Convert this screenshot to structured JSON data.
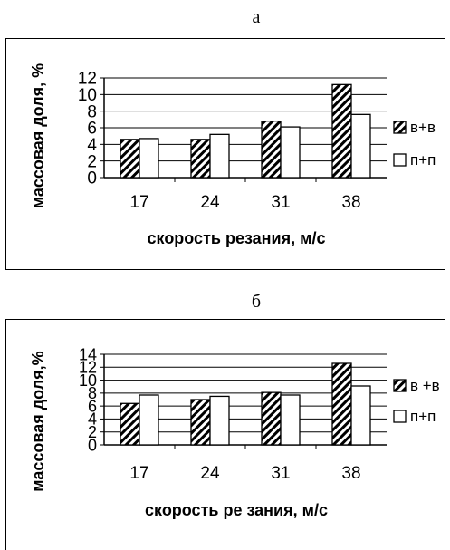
{
  "panels": [
    {
      "letter": "а"
    },
    {
      "letter": "б"
    }
  ],
  "chart_data": [
    {
      "type": "bar",
      "categories": [
        "17",
        "24",
        "31",
        "38"
      ],
      "series": [
        {
          "name": "в+в",
          "values": [
            4.6,
            4.6,
            6.8,
            11.2
          ],
          "pattern": "hatched"
        },
        {
          "name": "п+п",
          "values": [
            4.7,
            5.2,
            6.1,
            7.6
          ],
          "pattern": "white"
        }
      ],
      "xlabel": "скорость резания, м/с",
      "ylabel": "массовая доля, %",
      "ylim": [
        0,
        12
      ],
      "yticks": [
        "0",
        "2",
        "4",
        "6",
        "8",
        "10",
        "12"
      ],
      "grid": true,
      "legend": "right"
    },
    {
      "type": "bar",
      "categories": [
        "17",
        "24",
        "31",
        "38"
      ],
      "series": [
        {
          "name": "в +в",
          "values": [
            6.4,
            7.0,
            8.1,
            12.6
          ],
          "pattern": "hatched"
        },
        {
          "name": "п+п",
          "values": [
            7.7,
            7.5,
            7.7,
            9.1
          ],
          "pattern": "white"
        }
      ],
      "xlabel": "скорость ре зания, м/с",
      "ylabel": "массовая доля,%",
      "ylim": [
        0,
        14
      ],
      "yticks": [
        "0",
        "2",
        "4",
        "6",
        "8",
        "10",
        "12",
        "14"
      ],
      "grid": true,
      "legend": "right"
    }
  ],
  "colors": {
    "bar_stroke": "#000000",
    "bar_fill": "#ffffff",
    "grid": "#000000"
  }
}
